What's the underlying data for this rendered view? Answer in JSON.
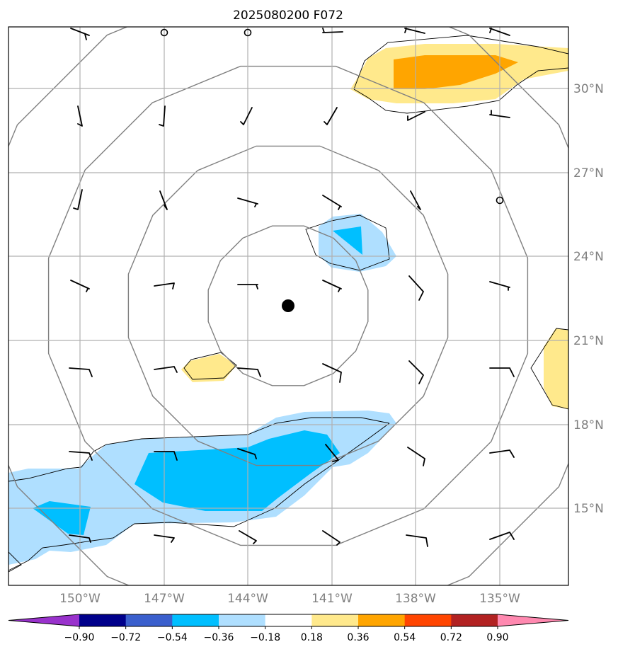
{
  "title": "2025080200 F072",
  "lat_labels": [
    "30°N",
    "27°N",
    "24°N",
    "21°N",
    "18°N",
    "15°N"
  ],
  "lon_labels": [
    "150°W",
    "147°W",
    "144°W",
    "141°W",
    "138°W",
    "135°W"
  ],
  "colorbar": {
    "ticks": [
      "−0.90",
      "−0.72",
      "−0.54",
      "−0.36",
      "−0.18",
      "0.18",
      "0.36",
      "0.54",
      "0.72",
      "0.90"
    ],
    "colors": [
      "#9932cc",
      "#00008b",
      "#3a5fcd",
      "#00bfff",
      "#afdfff",
      "#ffffff",
      "#ffe98c",
      "#ffa500",
      "#ff4500",
      "#b22222",
      "#ff89b0"
    ]
  },
  "colors": {
    "light_blue": "#afdfff",
    "blue": "#00bfff",
    "yellow": "#ffe98c",
    "orange": "#ffa500",
    "ring": "#808080",
    "grid": "#b0b0b0"
  },
  "center_marker_icon": "storm-center-dot-icon",
  "calm_marker_icon": "calm-wind-circle-icon"
}
